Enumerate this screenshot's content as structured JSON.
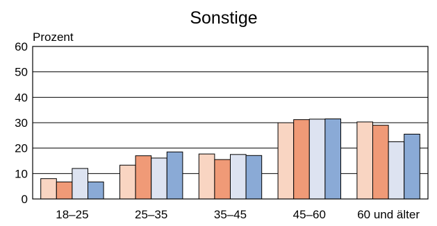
{
  "chart_data": {
    "type": "bar",
    "title": "Sonstige",
    "ylabel": "Prozent",
    "xlabel": "",
    "categories": [
      "18–25",
      "25–35",
      "35–45",
      "45–60",
      "60 und älter"
    ],
    "ylim": [
      0,
      60
    ],
    "yticks": [
      0,
      10,
      20,
      30,
      40,
      50,
      60
    ],
    "grid": true,
    "legend": "none",
    "series": [
      {
        "color": "#f9d5c2",
        "values": [
          8,
          13.3,
          17.7,
          30,
          30.3
        ]
      },
      {
        "color": "#f09a77",
        "values": [
          6.7,
          17,
          15.5,
          31.2,
          29
        ]
      },
      {
        "color": "#dde3f1",
        "values": [
          12,
          16.1,
          17.5,
          31.4,
          22.5
        ]
      },
      {
        "color": "#8aaad6",
        "values": [
          6.7,
          18.5,
          17.1,
          31.5,
          25.5
        ]
      }
    ]
  }
}
